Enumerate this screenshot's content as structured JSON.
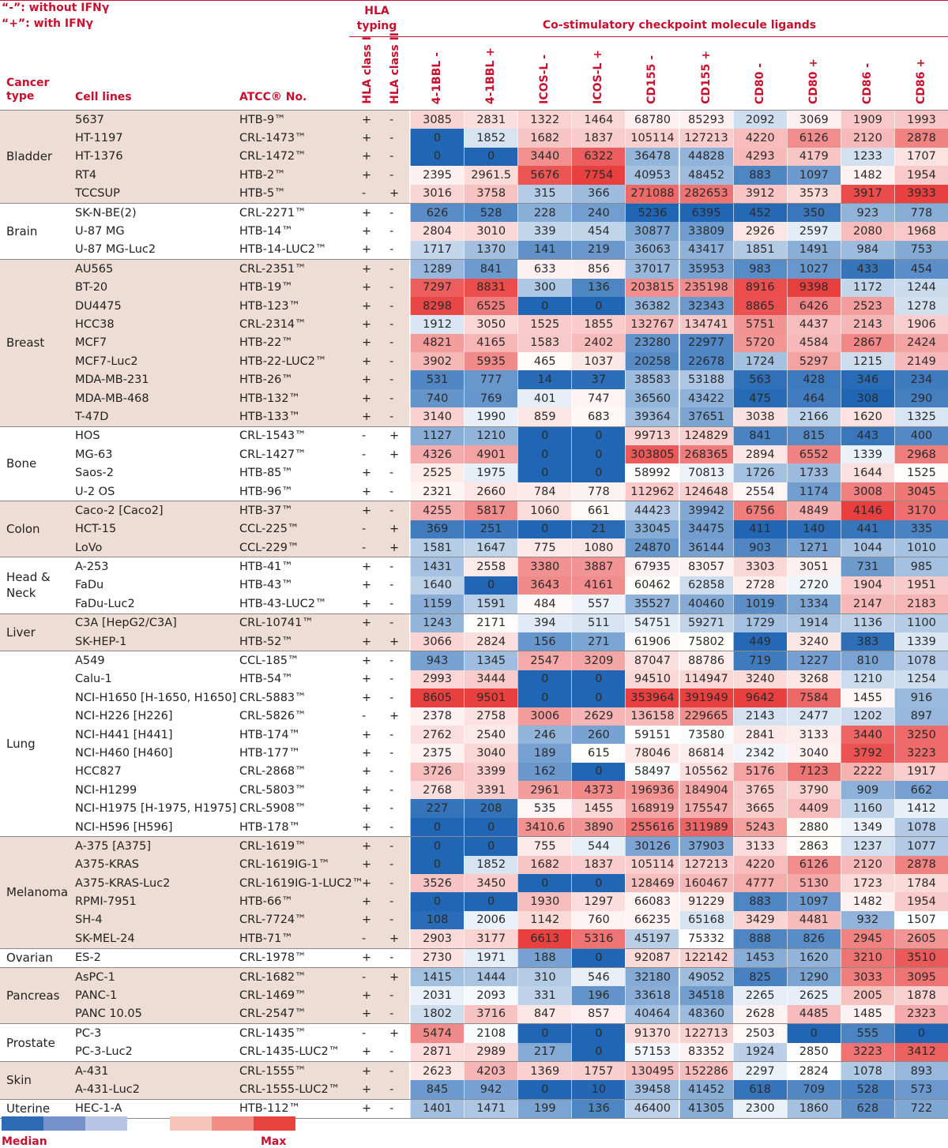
{
  "legend_text": {
    "line1": "“-”: without IFNγ",
    "line2": "“+”: with IFNγ"
  },
  "hla_title": "HLA typing",
  "costim_title": "Co-stimulatory checkpoint molecule ligands",
  "headers": {
    "cancer_type": "Cancer type",
    "cell_lines": "Cell lines",
    "atcc": "ATCC® No.",
    "hla_class1": "HLA class I",
    "hla_class2": "HLA class II",
    "values": [
      "4-1BBL -",
      "4-1BBL +",
      "ICOS-L -",
      "ICOS-L +",
      "CD155 -",
      "CD155 +",
      "CD80 -",
      "CD80 +",
      "CD86 -",
      "CD86 +"
    ]
  },
  "colors": {
    "low": "#2166b4",
    "mid": "#ffffff",
    "high": "#e8403f",
    "band": "#eeddd4",
    "accent": "#c8102e"
  },
  "scale_legend": {
    "low_swatches": [
      "#2d6cb5",
      "#7691cc",
      "#b7c4e5"
    ],
    "high_swatches": [
      "#f6c4b9",
      "#ef8d86",
      "#e8443f"
    ],
    "median_label": "Median",
    "max_label": "Max"
  },
  "groups": [
    {
      "name": "Bladder",
      "shaded": true,
      "rows": [
        [
          "5637",
          "HTB-9™",
          "+",
          "-",
          [
            3085,
            2831,
            1322,
            1464,
            68780,
            85293,
            2092,
            3069,
            1909,
            1993
          ]
        ],
        [
          "HT-1197",
          "CRL-1473™",
          "+",
          "-",
          [
            0,
            1852,
            1682,
            1837,
            105114,
            127213,
            4220,
            6126,
            2120,
            2878
          ]
        ],
        [
          "HT-1376",
          "CRL-1472™",
          "+",
          "-",
          [
            0,
            0,
            3440,
            6322,
            36478,
            44828,
            4293,
            4179,
            1233,
            1707
          ]
        ],
        [
          "RT4",
          "HTB-2™",
          "+",
          "-",
          [
            2395,
            "2961.5",
            5676,
            7754,
            40953,
            48452,
            883,
            1097,
            1482,
            1954
          ]
        ],
        [
          "TCCSUP",
          "HTB-5™",
          "-",
          "+",
          [
            3016,
            3758,
            315,
            366,
            271088,
            282653,
            3912,
            3573,
            3917,
            3933
          ]
        ]
      ]
    },
    {
      "name": "Brain",
      "shaded": false,
      "rows": [
        [
          "SK-N-BE(2)",
          "CRL-2271™",
          "+",
          "-",
          [
            626,
            528,
            228,
            240,
            5236,
            6395,
            452,
            350,
            923,
            778
          ]
        ],
        [
          "U-87 MG",
          "HTB-14™",
          "+",
          "-",
          [
            2804,
            3010,
            339,
            454,
            30877,
            33809,
            2926,
            2597,
            2080,
            1968
          ]
        ],
        [
          "U-87 MG-Luc2",
          "HTB-14-LUC2™",
          "+",
          "-",
          [
            1717,
            1370,
            141,
            219,
            36063,
            43417,
            1851,
            1491,
            984,
            753
          ]
        ]
      ]
    },
    {
      "name": "Breast",
      "shaded": true,
      "rows": [
        [
          "AU565",
          "CRL-2351™",
          "+",
          "-",
          [
            1289,
            841,
            633,
            856,
            37017,
            35953,
            983,
            1027,
            433,
            454
          ]
        ],
        [
          "BT-20",
          "HTB-19™",
          "+",
          "-",
          [
            7297,
            8831,
            300,
            136,
            203815,
            235198,
            8916,
            9398,
            1172,
            1244
          ]
        ],
        [
          "DU4475",
          "HTB-123™",
          "+",
          "-",
          [
            8298,
            6525,
            0,
            0,
            36382,
            32343,
            8865,
            6426,
            2523,
            1278
          ]
        ],
        [
          "HCC38",
          "CRL-2314™",
          "+",
          "-",
          [
            1912,
            3050,
            1525,
            1855,
            132767,
            134741,
            5751,
            4437,
            2143,
            1906
          ]
        ],
        [
          "MCF7",
          "HTB-22™",
          "+",
          "-",
          [
            4821,
            4165,
            1583,
            2402,
            23280,
            22977,
            5720,
            4584,
            2867,
            2424
          ]
        ],
        [
          "MCF7-Luc2",
          "HTB-22-LUC2™",
          "+",
          "-",
          [
            3902,
            5935,
            465,
            1037,
            20258,
            22678,
            1724,
            5297,
            1215,
            2149
          ]
        ],
        [
          "MDA-MB-231",
          "HTB-26™",
          "+",
          "-",
          [
            531,
            777,
            14,
            37,
            38583,
            53188,
            563,
            428,
            346,
            234
          ]
        ],
        [
          "MDA-MB-468",
          "HTB-132™",
          "+",
          "-",
          [
            740,
            769,
            401,
            747,
            36560,
            43422,
            475,
            464,
            308,
            290
          ]
        ],
        [
          "T-47D",
          "HTB-133™",
          "+",
          "-",
          [
            3140,
            1990,
            859,
            683,
            39364,
            37651,
            3038,
            2166,
            1620,
            1325
          ]
        ]
      ]
    },
    {
      "name": "Bone",
      "shaded": false,
      "rows": [
        [
          "HOS",
          "CRL-1543™",
          "-",
          "+",
          [
            1127,
            1210,
            0,
            0,
            99713,
            124829,
            841,
            815,
            443,
            400
          ]
        ],
        [
          "MG-63",
          "CRL-1427™",
          "-",
          "+",
          [
            4326,
            4901,
            0,
            0,
            303805,
            268365,
            2894,
            6552,
            1339,
            2968
          ]
        ],
        [
          "Saos-2",
          "HTB-85™",
          "+",
          "-",
          [
            2525,
            1975,
            0,
            0,
            58992,
            70813,
            1726,
            1733,
            1644,
            1525
          ]
        ],
        [
          "U-2 OS",
          "HTB-96™",
          "+",
          "-",
          [
            2321,
            2660,
            784,
            778,
            112962,
            124648,
            2554,
            1174,
            3008,
            3045
          ]
        ]
      ]
    },
    {
      "name": "Colon",
      "shaded": true,
      "rows": [
        [
          "Caco-2 [Caco2]",
          "HTB-37™",
          "+",
          "-",
          [
            4255,
            5817,
            1060,
            661,
            44423,
            39942,
            6756,
            4849,
            4146,
            3170
          ]
        ],
        [
          "HCT-15",
          "CCL-225™",
          "-",
          "+",
          [
            369,
            251,
            0,
            21,
            33045,
            34475,
            411,
            140,
            441,
            335
          ]
        ],
        [
          "LoVo",
          "CCL-229™",
          "-",
          "+",
          [
            1581,
            1647,
            775,
            1080,
            24870,
            36144,
            903,
            1271,
            1044,
            1010
          ]
        ]
      ]
    },
    {
      "name": "Head & Neck",
      "shaded": false,
      "rows": [
        [
          "A-253",
          "HTB-41™",
          "+",
          "-",
          [
            1431,
            2558,
            3380,
            3887,
            67935,
            83057,
            3303,
            3051,
            731,
            985
          ]
        ],
        [
          "FaDu",
          "HTB-43™",
          "+",
          "-",
          [
            1640,
            0,
            3643,
            4161,
            60462,
            62858,
            2728,
            2720,
            1904,
            1951
          ]
        ],
        [
          "FaDu-Luc2",
          "HTB-43-LUC2™",
          "+",
          "-",
          [
            1159,
            1591,
            484,
            557,
            35527,
            40460,
            1019,
            1334,
            2147,
            2183
          ]
        ]
      ]
    },
    {
      "name": "Liver",
      "shaded": true,
      "rows": [
        [
          "C3A [HepG2/C3A]",
          "CRL-10741™",
          "+",
          "-",
          [
            1243,
            2171,
            394,
            511,
            54751,
            59271,
            1729,
            1914,
            1136,
            1100
          ]
        ],
        [
          "SK-HEP-1",
          "HTB-52™",
          "+",
          "+",
          [
            3066,
            2824,
            156,
            271,
            61906,
            75802,
            449,
            3240,
            383,
            1339
          ]
        ]
      ]
    },
    {
      "name": "Lung",
      "shaded": false,
      "rows": [
        [
          "A549",
          "CCL-185™",
          "+",
          "-",
          [
            943,
            1345,
            2547,
            3209,
            87047,
            88786,
            719,
            1227,
            810,
            1078
          ]
        ],
        [
          "Calu-1",
          "HTB-54™",
          "+",
          "-",
          [
            2993,
            3444,
            0,
            0,
            94510,
            114947,
            3240,
            3268,
            1210,
            1254
          ]
        ],
        [
          "NCI-H1650 [H-1650, H1650]",
          "CRL-5883™",
          "+",
          "-",
          [
            8605,
            9501,
            0,
            0,
            353964,
            391949,
            9642,
            7584,
            1455,
            916
          ]
        ],
        [
          "NCI-H226 [H226]",
          "CRL-5826™",
          "-",
          "+",
          [
            2378,
            2758,
            3006,
            2629,
            136158,
            229665,
            2143,
            2477,
            1202,
            897
          ]
        ],
        [
          "NCI-H441 [H441]",
          "HTB-174™",
          "+",
          "-",
          [
            2762,
            2540,
            246,
            260,
            59151,
            73580,
            2841,
            3133,
            3440,
            3250
          ]
        ],
        [
          "NCI-H460 [H460]",
          "HTB-177™",
          "+",
          "-",
          [
            2375,
            3040,
            189,
            615,
            78046,
            86814,
            2342,
            3040,
            3792,
            3223
          ]
        ],
        [
          "HCC827",
          "CRL-2868™",
          "+",
          "-",
          [
            3726,
            3399,
            162,
            0,
            58497,
            105562,
            5176,
            7123,
            2222,
            1917
          ]
        ],
        [
          "NCI-H1299",
          "CRL-5803™",
          "+",
          "-",
          [
            2768,
            3391,
            2961,
            4373,
            196936,
            184904,
            3765,
            3790,
            909,
            662
          ]
        ],
        [
          "NCI-H1975 [H-1975, H1975]",
          "CRL-5908™",
          "+",
          "-",
          [
            227,
            208,
            535,
            1455,
            168919,
            175547,
            3665,
            4409,
            1160,
            1412
          ]
        ],
        [
          "NCI-H596 [H596]",
          "HTB-178™",
          "+",
          "-",
          [
            0,
            0,
            "3410.6",
            3890,
            255616,
            311989,
            5243,
            2880,
            1349,
            1078
          ]
        ]
      ]
    },
    {
      "name": "Melanoma",
      "shaded": true,
      "rows": [
        [
          "A-375 [A375]",
          "CRL-1619™",
          "+",
          "-",
          [
            0,
            0,
            755,
            544,
            30126,
            37903,
            3133,
            2863,
            1237,
            1077
          ]
        ],
        [
          "A375-KRAS",
          "CRL-1619IG-1™",
          "+",
          "-",
          [
            0,
            1852,
            1682,
            1837,
            105114,
            127213,
            4220,
            6126,
            2120,
            2878
          ]
        ],
        [
          "A375-KRAS-Luc2",
          "CRL-1619IG-1-LUC2™",
          "+",
          "-",
          [
            3526,
            3450,
            0,
            0,
            128469,
            160467,
            4777,
            5130,
            1723,
            1784
          ]
        ],
        [
          "RPMI-7951",
          "HTB-66™",
          "+",
          "-",
          [
            0,
            0,
            1930,
            1297,
            66083,
            91229,
            883,
            1097,
            1482,
            1954
          ]
        ],
        [
          "SH-4",
          "CRL-7724™",
          "+",
          "-",
          [
            108,
            2006,
            1142,
            760,
            66235,
            65168,
            3429,
            4481,
            932,
            1507
          ]
        ],
        [
          "SK-MEL-24",
          "HTB-71™",
          "-",
          "+",
          [
            2903,
            3177,
            6613,
            5316,
            45197,
            75332,
            888,
            826,
            2945,
            2605
          ]
        ]
      ]
    },
    {
      "name": "Ovarian",
      "shaded": false,
      "rows": [
        [
          "ES-2",
          "CRL-1978™",
          "+",
          "-",
          [
            2730,
            1971,
            188,
            0,
            92087,
            122142,
            1453,
            1620,
            3210,
            3510
          ]
        ]
      ]
    },
    {
      "name": "Pancreas",
      "shaded": true,
      "rows": [
        [
          "AsPC-1",
          "CRL-1682™",
          "-",
          "+",
          [
            1415,
            1444,
            310,
            546,
            32180,
            49052,
            825,
            1290,
            3033,
            3095
          ]
        ],
        [
          "PANC-1",
          "CRL-1469™",
          "+",
          "-",
          [
            2031,
            2093,
            331,
            196,
            33618,
            34518,
            2265,
            2625,
            2005,
            1878
          ]
        ],
        [
          "PANC 10.05",
          "CRL-2547™",
          "+",
          "-",
          [
            1802,
            3716,
            847,
            857,
            40464,
            48360,
            2628,
            4485,
            1485,
            2323
          ]
        ]
      ]
    },
    {
      "name": "Prostate",
      "shaded": false,
      "rows": [
        [
          "PC-3",
          "CRL-1435™",
          "-",
          "+",
          [
            5474,
            2108,
            0,
            0,
            91370,
            122713,
            2503,
            0,
            555,
            0
          ]
        ],
        [
          "PC-3-Luc2",
          "CRL-1435-LUC2™",
          "+",
          "-",
          [
            2871,
            2989,
            217,
            0,
            57153,
            83352,
            1924,
            2850,
            3223,
            3412
          ]
        ]
      ]
    },
    {
      "name": "Skin",
      "shaded": true,
      "rows": [
        [
          "A-431",
          "CRL-1555™",
          "+",
          "-",
          [
            2623,
            4203,
            1369,
            1757,
            130495,
            152286,
            2297,
            2824,
            1078,
            893
          ]
        ],
        [
          "A-431-Luc2",
          "CRL-1555-LUC2™",
          "+",
          "-",
          [
            845,
            942,
            0,
            10,
            39458,
            41452,
            618,
            709,
            528,
            573
          ]
        ]
      ]
    },
    {
      "name": "Uterine",
      "shaded": false,
      "rows": [
        [
          "HEC-1-A",
          "HTB-112™",
          "+",
          "-",
          [
            1401,
            1471,
            199,
            136,
            46400,
            41305,
            2300,
            1860,
            628,
            722
          ]
        ]
      ]
    }
  ]
}
